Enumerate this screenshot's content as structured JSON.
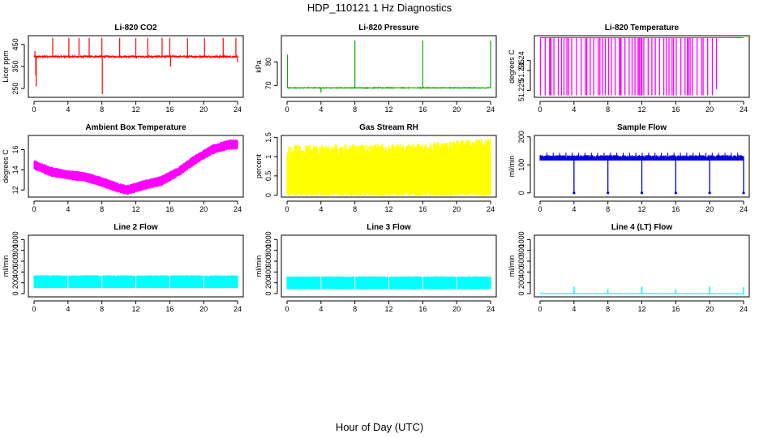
{
  "figure": {
    "title": "HDP_110121  1 Hz Diagnostics",
    "xlabel": "Hour of Day (UTC)"
  },
  "chart_data": [
    {
      "id": "co2",
      "type": "line",
      "title": "Li-820 CO2",
      "ylabel": "Licor ppm",
      "color": "#ff0000",
      "xlim": [
        0,
        24
      ],
      "ylim": [
        210,
        490
      ],
      "xticks": [
        "0",
        "4",
        "8",
        "12",
        "16",
        "20",
        "24"
      ],
      "yticks": [
        250,
        350,
        450
      ],
      "series": [
        {
          "name": "CO2",
          "baseline": 395,
          "noise": 4,
          "spikes": [
            [
              0.1,
              420
            ],
            [
              0.2,
              310
            ],
            [
              0.25,
              260
            ],
            [
              2.2,
              480
            ],
            [
              4.1,
              480
            ],
            [
              5.3,
              480
            ],
            [
              6.5,
              480
            ],
            [
              8.0,
              480
            ],
            [
              8.05,
              225
            ],
            [
              10.1,
              480
            ],
            [
              12.0,
              480
            ],
            [
              13.4,
              480
            ],
            [
              15.1,
              480
            ],
            [
              16.0,
              480
            ],
            [
              16.1,
              350
            ],
            [
              18.1,
              480
            ],
            [
              20.1,
              480
            ],
            [
              22.3,
              480
            ],
            [
              23.8,
              480
            ],
            [
              24,
              370
            ]
          ]
        }
      ]
    },
    {
      "id": "pressure",
      "type": "line",
      "title": "Li-820 Pressure",
      "ylabel": "kPa",
      "color": "#00b000",
      "xlim": [
        0,
        24
      ],
      "ylim": [
        65,
        91
      ],
      "xticks": [
        "0",
        "4",
        "8",
        "12",
        "16",
        "20",
        "24"
      ],
      "yticks": [
        70,
        80
      ],
      "series": [
        {
          "name": "Pressure",
          "baseline": 69,
          "noise": 0.15,
          "spikes": [
            [
              0.05,
              83
            ],
            [
              4.0,
              67
            ],
            [
              8.0,
              89
            ],
            [
              16.0,
              89
            ],
            [
              24,
              89
            ]
          ]
        }
      ]
    },
    {
      "id": "licor_temp",
      "type": "line",
      "title": "Li-820 Temperature",
      "ylabel": "degrees C",
      "color": "#ff00ff",
      "xlim": [
        0,
        24
      ],
      "ylim": [
        51.2215,
        51.2525
      ],
      "xticks": [
        "0",
        "4",
        "8",
        "12",
        "16",
        "20",
        "24"
      ],
      "yticks": [
        51.225,
        51.235,
        51.24
      ],
      "series": [
        {
          "name": "Temperature",
          "high": 51.2515,
          "low": 51.2225,
          "switch_end": 20.8
        }
      ]
    },
    {
      "id": "box_temp",
      "type": "line",
      "title": "Ambient Box Temperature",
      "ylabel": "degrees C",
      "color": "#ff00ff",
      "xlim": [
        0,
        24
      ],
      "ylim": [
        11.3,
        17.4
      ],
      "xticks": [
        "0",
        "4",
        "8",
        "12",
        "16",
        "20",
        "24"
      ],
      "yticks": [
        12,
        14,
        16
      ],
      "series": [
        {
          "name": "Box Temp",
          "band": 0.5,
          "x": [
            0,
            2,
            4,
            6,
            8,
            10,
            11,
            13,
            15,
            17,
            19,
            21,
            23,
            24
          ],
          "y": [
            14.5,
            13.8,
            13.5,
            13.3,
            12.8,
            12.2,
            12.0,
            12.5,
            12.9,
            13.8,
            15.0,
            16.0,
            16.5,
            16.5
          ]
        }
      ]
    },
    {
      "id": "rh",
      "type": "line",
      "title": "Gas Stream RH",
      "ylabel": "percent",
      "color": "#ffff00",
      "xlim": [
        0,
        24
      ],
      "ylim": [
        -0.05,
        1.55
      ],
      "xticks": [
        "0",
        "4",
        "8",
        "12",
        "16",
        "20",
        "24"
      ],
      "yticks": [
        0.0,
        0.5,
        1.0,
        1.5
      ],
      "series": [
        {
          "name": "RH",
          "low": 0.1,
          "high": 1.3,
          "x": [
            0,
            16,
            24
          ],
          "high_end": [
            1.3,
            1.35,
            1.5
          ]
        }
      ]
    },
    {
      "id": "sample_flow",
      "type": "line",
      "title": "Sample Flow",
      "ylabel": "ml/min",
      "color": "#0000dd",
      "xlim": [
        0,
        24
      ],
      "ylim": [
        -15,
        205
      ],
      "xticks": [
        "0",
        "4",
        "8",
        "12",
        "16",
        "20",
        "24"
      ],
      "yticks": [
        0,
        100,
        200
      ],
      "series": [
        {
          "name": "Flow",
          "baseline": 120,
          "band": 15,
          "dips": [
            4,
            8,
            12,
            16,
            20,
            24
          ],
          "dip_value": 0
        }
      ]
    },
    {
      "id": "line2",
      "type": "line",
      "title": "Line 2 Flow",
      "ylabel": "ml/min",
      "color": "#00ffff",
      "xlim": [
        0,
        24
      ],
      "ylim": [
        -60,
        1080
      ],
      "xticks": [
        "0",
        "4",
        "8",
        "12",
        "16",
        "20",
        "24"
      ],
      "yticks": [
        0,
        200,
        400,
        600,
        800,
        1000
      ],
      "series": [
        {
          "name": "Line 2",
          "low": 100,
          "high": 340,
          "gaps": [
            4,
            8,
            12,
            16,
            20
          ]
        }
      ]
    },
    {
      "id": "line3",
      "type": "line",
      "title": "Line 3 Flow",
      "ylabel": "ml/min",
      "color": "#00ffff",
      "xlim": [
        0,
        24
      ],
      "ylim": [
        -60,
        1080
      ],
      "xticks": [
        "0",
        "4",
        "8",
        "12",
        "16",
        "20",
        "24"
      ],
      "yticks": [
        0,
        200,
        400,
        600,
        800,
        1000
      ],
      "series": [
        {
          "name": "Line 3",
          "low": 80,
          "high": 320,
          "gaps": [
            4,
            8,
            12,
            16,
            20
          ]
        }
      ]
    },
    {
      "id": "line4",
      "type": "line",
      "title": "Line 4 (LT) Flow",
      "ylabel": "ml/min",
      "color": "#00ffff",
      "xlim": [
        0,
        24
      ],
      "ylim": [
        -60,
        1080
      ],
      "xticks": [
        "0",
        "4",
        "8",
        "12",
        "16",
        "20",
        "24"
      ],
      "yticks": [
        0,
        200,
        400,
        600,
        800,
        1000
      ],
      "series": [
        {
          "name": "Line 4",
          "baseline": 0,
          "spikes": [
            [
              4,
              130
            ],
            [
              8,
              90
            ],
            [
              12,
              130
            ],
            [
              16,
              80
            ],
            [
              20,
              130
            ],
            [
              24,
              120
            ]
          ]
        }
      ]
    }
  ]
}
